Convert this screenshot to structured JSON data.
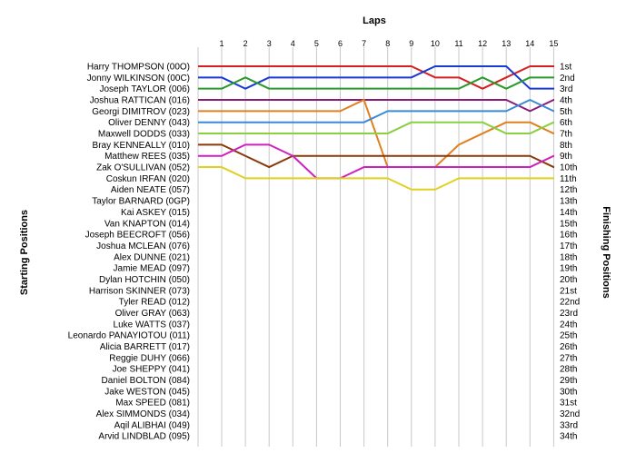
{
  "chart_data": {
    "type": "line",
    "title": "Laps",
    "ylabel_left": "Starting Positions",
    "ylabel_right": "Finishing Positions",
    "laps": [
      1,
      2,
      3,
      4,
      5,
      6,
      7,
      8,
      9,
      10,
      11,
      12,
      13,
      14,
      15
    ],
    "start_labels": [
      "Harry THOMPSON (00O)",
      "Jonny WILKINSON (00C)",
      "Joseph TAYLOR (006)",
      "Joshua RATTICAN (016)",
      "Georgi DIMITROV (023)",
      "Oliver DENNY (043)",
      "Maxwell DODDS (033)",
      "Bray KENNEALLY (010)",
      "Matthew REES (035)",
      "Zak O'SULLIVAN (052)",
      "Coskun IRFAN (020)",
      "Aiden NEATE (057)",
      "Taylor BARNARD (0GP)",
      "Kai ASKEY (015)",
      "Van KNAPTON (014)",
      "Joseph BEECROFT (056)",
      "Joshua MCLEAN (076)",
      "Alex DUNNE (021)",
      "Jamie MEAD (097)",
      "Dylan HOTCHIN (050)",
      "Harrison SKINNER (073)",
      "Tyler READ (012)",
      "Oliver GRAY (063)",
      "Luke WATTS (037)",
      "Leonardo PANAYIOTOU (011)",
      "Alicia BARRETT (017)",
      "Reggie DUHY (066)",
      "Joe SHEPPY (041)",
      "Daniel BOLTON (084)",
      "Jake WESTON (045)",
      "Max SPEED (081)",
      "Alex SIMMONDS (034)",
      "Aqil ALIBHAI (049)",
      "Arvid LINDBLAD (095)"
    ],
    "finish_labels": [
      "1st",
      "2nd",
      "3rd",
      "4th",
      "5th",
      "6th",
      "7th",
      "8th",
      "9th",
      "10th",
      "11th",
      "12th",
      "13th",
      "14th",
      "15th",
      "16th",
      "17th",
      "18th",
      "19th",
      "20th",
      "21st",
      "22nd",
      "23rd",
      "24th",
      "25th",
      "26th",
      "27th",
      "28th",
      "29th",
      "30th",
      "31st",
      "32nd",
      "33rd",
      "34th"
    ],
    "series": [
      {
        "color": "#d42020",
        "positions": [
          1,
          1,
          1,
          1,
          1,
          1,
          1,
          1,
          1,
          2,
          2,
          3,
          2,
          1,
          1
        ]
      },
      {
        "color": "#1a3ad4",
        "positions": [
          2,
          3,
          2,
          2,
          2,
          2,
          2,
          2,
          2,
          1,
          1,
          1,
          1,
          3,
          3
        ]
      },
      {
        "color": "#2a9a2a",
        "positions": [
          3,
          2,
          3,
          3,
          3,
          3,
          3,
          3,
          3,
          3,
          3,
          2,
          3,
          2,
          2
        ]
      },
      {
        "color": "#8a1a7a",
        "positions": [
          4,
          4,
          4,
          4,
          4,
          4,
          4,
          4,
          4,
          4,
          4,
          4,
          4,
          5,
          4
        ]
      },
      {
        "color": "#e08020",
        "positions": [
          5,
          5,
          5,
          5,
          5,
          5,
          4,
          10,
          10,
          10,
          8,
          7,
          6,
          6,
          7
        ]
      },
      {
        "color": "#3a8ad4",
        "positions": [
          6,
          6,
          6,
          6,
          6,
          6,
          6,
          5,
          5,
          5,
          5,
          5,
          5,
          4,
          5
        ]
      },
      {
        "color": "#8ad040",
        "positions": [
          7,
          7,
          7,
          7,
          7,
          7,
          7,
          7,
          6,
          6,
          6,
          6,
          7,
          7,
          6
        ]
      },
      {
        "color": "#8a3a0a",
        "positions": [
          8,
          9,
          10,
          9,
          9,
          9,
          9,
          9,
          9,
          9,
          9,
          9,
          9,
          9,
          10
        ]
      },
      {
        "color": "#d020c0",
        "positions": [
          9,
          8,
          8,
          9,
          11,
          11,
          10,
          10,
          10,
          10,
          10,
          10,
          10,
          10,
          9
        ]
      },
      {
        "color": "#e0d020",
        "positions": [
          10,
          11,
          11,
          11,
          11,
          11,
          11,
          11,
          12,
          12,
          11,
          11,
          11,
          11,
          11
        ]
      }
    ],
    "ylim": [
      1,
      34
    ]
  }
}
